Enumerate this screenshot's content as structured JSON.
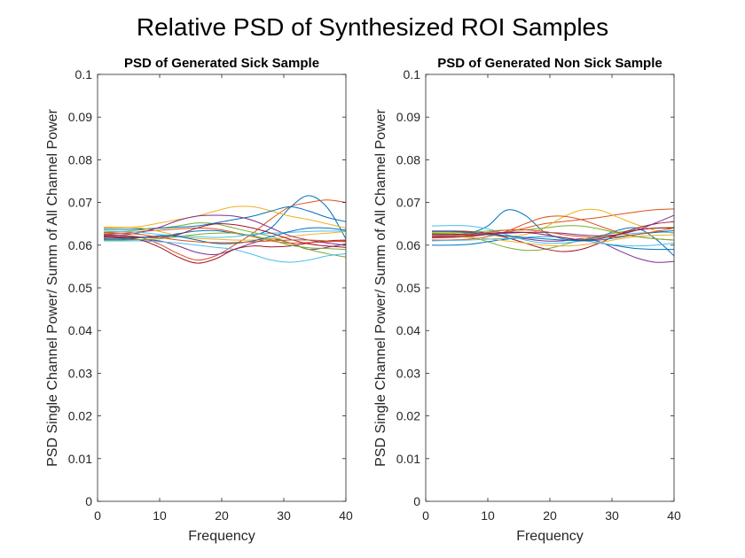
{
  "figure": {
    "title": "Relative PSD of Synthesized ROI Samples"
  },
  "chart_data": [
    {
      "type": "line",
      "title": "PSD of Generated Sick Sample",
      "xlabel": "Frequency",
      "ylabel": "PSD Single Channel Power/ Summ of All Channel Power",
      "xlim": [
        0,
        40
      ],
      "ylim": [
        0,
        0.1
      ],
      "xticks": [
        0,
        10,
        20,
        30,
        40
      ],
      "yticks": [
        0,
        0.01,
        0.02,
        0.03,
        0.04,
        0.05,
        0.06,
        0.07,
        0.08,
        0.09,
        0.1
      ],
      "grid": false,
      "x": [
        1,
        4,
        7,
        10,
        13,
        16,
        19,
        22,
        25,
        28,
        31,
        34,
        37,
        40
      ],
      "series": [
        {
          "color": "#0072BD",
          "values": [
            0.062,
            0.0619,
            0.0618,
            0.0621,
            0.0627,
            0.0633,
            0.0634,
            0.0628,
            0.0623,
            0.0641,
            0.0688,
            0.0716,
            0.0688,
            0.0615
          ]
        },
        {
          "color": "#D95319",
          "values": [
            0.0625,
            0.0623,
            0.0618,
            0.0602,
            0.058,
            0.0565,
            0.0575,
            0.06,
            0.0628,
            0.0662,
            0.069,
            0.07,
            0.0706,
            0.07
          ]
        },
        {
          "color": "#EDB120",
          "values": [
            0.064,
            0.0641,
            0.0644,
            0.0652,
            0.066,
            0.0668,
            0.068,
            0.069,
            0.069,
            0.068,
            0.0668,
            0.066,
            0.065,
            0.064
          ]
        },
        {
          "color": "#7E2F8E",
          "values": [
            0.0615,
            0.0614,
            0.0613,
            0.061,
            0.0598,
            0.0583,
            0.0578,
            0.059,
            0.0605,
            0.0615,
            0.0605,
            0.059,
            0.0595,
            0.0603
          ]
        },
        {
          "color": "#77AC30",
          "values": [
            0.063,
            0.0632,
            0.0636,
            0.064,
            0.0645,
            0.0652,
            0.065,
            0.064,
            0.063,
            0.062,
            0.0605,
            0.059,
            0.058,
            0.0572
          ]
        },
        {
          "color": "#4DBEEE",
          "values": [
            0.061,
            0.061,
            0.061,
            0.0608,
            0.0605,
            0.06,
            0.0595,
            0.059,
            0.0578,
            0.0565,
            0.056,
            0.0565,
            0.0575,
            0.058
          ]
        },
        {
          "color": "#A2142F",
          "values": [
            0.0618,
            0.0617,
            0.0612,
            0.0595,
            0.0572,
            0.0558,
            0.0568,
            0.059,
            0.0598,
            0.0596,
            0.0598,
            0.0605,
            0.061,
            0.0612
          ]
        },
        {
          "color": "#0072BD",
          "values": [
            0.0637,
            0.0637,
            0.0638,
            0.064,
            0.0642,
            0.0645,
            0.0652,
            0.066,
            0.0668,
            0.068,
            0.069,
            0.068,
            0.0665,
            0.0655
          ]
        },
        {
          "color": "#D95319",
          "values": [
            0.0626,
            0.0628,
            0.0632,
            0.0635,
            0.0638,
            0.064,
            0.0638,
            0.063,
            0.062,
            0.061,
            0.0605,
            0.0606,
            0.0608,
            0.061
          ]
        },
        {
          "color": "#EDB120",
          "values": [
            0.0642,
            0.0642,
            0.064,
            0.0632,
            0.0622,
            0.0616,
            0.0614,
            0.0612,
            0.0612,
            0.0614,
            0.062,
            0.0625,
            0.0628,
            0.0632
          ]
        },
        {
          "color": "#7E2F8E",
          "values": [
            0.0623,
            0.0624,
            0.063,
            0.0642,
            0.0658,
            0.0668,
            0.067,
            0.0668,
            0.0658,
            0.064,
            0.0622,
            0.0612,
            0.0605,
            0.06
          ]
        },
        {
          "color": "#77AC30",
          "values": [
            0.0612,
            0.0612,
            0.0613,
            0.0615,
            0.062,
            0.0625,
            0.0628,
            0.0628,
            0.0622,
            0.0612,
            0.06,
            0.0594,
            0.0592,
            0.059
          ]
        },
        {
          "color": "#4DBEEE",
          "values": [
            0.0633,
            0.0632,
            0.063,
            0.0625,
            0.0622,
            0.062,
            0.0618,
            0.062,
            0.0625,
            0.0628,
            0.063,
            0.0632,
            0.0633,
            0.0633
          ]
        },
        {
          "color": "#A2142F",
          "values": [
            0.0621,
            0.062,
            0.0619,
            0.0618,
            0.0625,
            0.064,
            0.065,
            0.0648,
            0.064,
            0.0628,
            0.0614,
            0.0603,
            0.0598,
            0.0595
          ]
        },
        {
          "color": "#0072BD",
          "values": [
            0.0614,
            0.0615,
            0.0618,
            0.0622,
            0.062,
            0.0612,
            0.0604,
            0.0604,
            0.061,
            0.062,
            0.0632,
            0.064,
            0.064,
            0.0635
          ]
        },
        {
          "color": "#D95319",
          "values": [
            0.0629,
            0.0628,
            0.0625,
            0.0618,
            0.0612,
            0.0608,
            0.0606,
            0.0606,
            0.0608,
            0.061,
            0.0612,
            0.0612,
            0.061,
            0.0608
          ]
        }
      ]
    },
    {
      "type": "line",
      "title": "PSD of Generated Non Sick Sample",
      "xlabel": "Frequency",
      "ylabel": "PSD Single Channel Power/ Summ of All Channel Power",
      "xlim": [
        0,
        40
      ],
      "ylim": [
        0,
        0.1
      ],
      "xticks": [
        0,
        10,
        20,
        30,
        40
      ],
      "yticks": [
        0,
        0.01,
        0.02,
        0.03,
        0.04,
        0.05,
        0.06,
        0.07,
        0.08,
        0.09,
        0.1
      ],
      "grid": false,
      "x": [
        1,
        4,
        7,
        10,
        13,
        16,
        19,
        22,
        25,
        28,
        31,
        34,
        37,
        40
      ],
      "series": [
        {
          "color": "#0072BD",
          "values": [
            0.0625,
            0.0625,
            0.0628,
            0.0645,
            0.0682,
            0.067,
            0.0632,
            0.0615,
            0.0612,
            0.062,
            0.0635,
            0.064,
            0.0615,
            0.0575
          ]
        },
        {
          "color": "#D95319",
          "values": [
            0.0617,
            0.0618,
            0.062,
            0.0625,
            0.063,
            0.064,
            0.065,
            0.0655,
            0.066,
            0.0665,
            0.0672,
            0.0678,
            0.0683,
            0.0685
          ]
        },
        {
          "color": "#EDB120",
          "values": [
            0.063,
            0.063,
            0.0628,
            0.0624,
            0.062,
            0.0625,
            0.064,
            0.0665,
            0.0682,
            0.0682,
            0.0665,
            0.0648,
            0.0635,
            0.0628
          ]
        },
        {
          "color": "#7E2F8E",
          "values": [
            0.0622,
            0.0622,
            0.0623,
            0.0625,
            0.0622,
            0.0615,
            0.061,
            0.061,
            0.0615,
            0.0608,
            0.0588,
            0.057,
            0.056,
            0.0562
          ]
        },
        {
          "color": "#77AC30",
          "values": [
            0.0627,
            0.0625,
            0.062,
            0.0608,
            0.0595,
            0.0588,
            0.059,
            0.06,
            0.0612,
            0.0622,
            0.063,
            0.0636,
            0.064,
            0.0642
          ]
        },
        {
          "color": "#4DBEEE",
          "values": [
            0.0645,
            0.0646,
            0.0645,
            0.0638,
            0.0625,
            0.0612,
            0.0605,
            0.0605,
            0.061,
            0.0618,
            0.0624,
            0.0628,
            0.063,
            0.063
          ]
        },
        {
          "color": "#A2142F",
          "values": [
            0.0633,
            0.0633,
            0.0632,
            0.0628,
            0.0618,
            0.0605,
            0.0592,
            0.0585,
            0.059,
            0.0605,
            0.0625,
            0.064,
            0.065,
            0.0655
          ]
        },
        {
          "color": "#0072BD",
          "values": [
            0.06,
            0.06,
            0.0602,
            0.0608,
            0.0614,
            0.0618,
            0.062,
            0.0618,
            0.0612,
            0.0605,
            0.0598,
            0.0592,
            0.059,
            0.059
          ]
        },
        {
          "color": "#D95319",
          "values": [
            0.0612,
            0.0612,
            0.0614,
            0.062,
            0.0632,
            0.065,
            0.0665,
            0.0668,
            0.066,
            0.0645,
            0.063,
            0.062,
            0.0615,
            0.0612
          ]
        },
        {
          "color": "#EDB120",
          "values": [
            0.062,
            0.062,
            0.0618,
            0.0615,
            0.061,
            0.0605,
            0.06,
            0.0598,
            0.06,
            0.0606,
            0.0614,
            0.062,
            0.0623,
            0.0624
          ]
        },
        {
          "color": "#7E2F8E",
          "values": [
            0.0618,
            0.0619,
            0.0622,
            0.0625,
            0.0628,
            0.063,
            0.063,
            0.0628,
            0.0624,
            0.0622,
            0.0625,
            0.0635,
            0.0652,
            0.067
          ]
        },
        {
          "color": "#77AC30",
          "values": [
            0.0628,
            0.0628,
            0.063,
            0.0633,
            0.0635,
            0.0636,
            0.064,
            0.0645,
            0.0645,
            0.0638,
            0.0628,
            0.062,
            0.0615,
            0.0612
          ]
        },
        {
          "color": "#4DBEEE",
          "values": [
            0.061,
            0.0611,
            0.0612,
            0.0614,
            0.0616,
            0.0618,
            0.062,
            0.0618,
            0.0612,
            0.0605,
            0.06,
            0.0598,
            0.06,
            0.0605
          ]
        },
        {
          "color": "#A2142F",
          "values": [
            0.0625,
            0.0625,
            0.0626,
            0.0628,
            0.063,
            0.063,
            0.0625,
            0.0618,
            0.0612,
            0.0615,
            0.0625,
            0.0635,
            0.064,
            0.064
          ]
        },
        {
          "color": "#0072BD",
          "values": [
            0.0632,
            0.0632,
            0.063,
            0.0626,
            0.0622,
            0.0618,
            0.0615,
            0.0612,
            0.061,
            0.0612,
            0.0618,
            0.0625,
            0.063,
            0.0634
          ]
        },
        {
          "color": "#D95319",
          "values": [
            0.062,
            0.0621,
            0.0624,
            0.063,
            0.0635,
            0.0636,
            0.0632,
            0.0625,
            0.062,
            0.0618,
            0.062,
            0.0625,
            0.0632,
            0.064
          ]
        }
      ]
    }
  ]
}
